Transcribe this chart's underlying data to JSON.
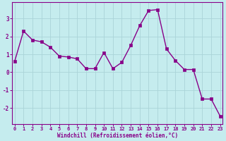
{
  "x": [
    0,
    1,
    2,
    3,
    4,
    5,
    6,
    7,
    8,
    9,
    10,
    11,
    12,
    13,
    14,
    15,
    16,
    17,
    18,
    19,
    20,
    21,
    22,
    23
  ],
  "y": [
    0.6,
    2.3,
    1.8,
    1.7,
    1.4,
    0.9,
    0.85,
    0.75,
    0.2,
    0.2,
    1.1,
    0.2,
    0.55,
    1.5,
    2.6,
    3.45,
    3.5,
    1.3,
    0.65,
    0.15,
    0.15,
    -1.5,
    -1.5,
    -2.45
  ],
  "line_color": "#880088",
  "marker_color": "#880088",
  "bg_color": "#c5ecee",
  "grid_color": "#aad4d8",
  "ytick_vals": [
    -2,
    -1,
    0,
    1,
    2,
    3
  ],
  "ytick_labels": [
    "-2",
    "-1",
    "0",
    "1",
    "2",
    "3"
  ],
  "ylim": [
    -2.9,
    3.9
  ],
  "xlim": [
    -0.3,
    23.3
  ],
  "xlabel": "Windchill (Refroidissement éolien,°C)",
  "tick_color": "#880088",
  "axis_color": "#880088",
  "tick_fontsize": 5.0,
  "xlabel_fontsize": 5.5,
  "linewidth": 1.0,
  "markersize": 2.2
}
